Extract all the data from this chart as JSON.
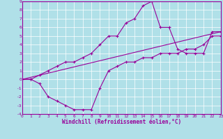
{
  "xlabel": "Windchill (Refroidissement éolien,°C)",
  "background_color": "#b0e0e8",
  "grid_color": "#ffffff",
  "line_color": "#990099",
  "xlim": [
    0,
    23
  ],
  "ylim": [
    -4,
    9
  ],
  "xticks": [
    0,
    1,
    2,
    3,
    4,
    5,
    6,
    7,
    8,
    9,
    10,
    11,
    12,
    13,
    14,
    15,
    16,
    17,
    18,
    19,
    20,
    21,
    22,
    23
  ],
  "yticks": [
    -4,
    -3,
    -2,
    -1,
    0,
    1,
    2,
    3,
    4,
    5,
    6,
    7,
    8,
    9
  ],
  "line1_x": [
    0,
    1,
    2,
    3,
    4,
    5,
    6,
    7,
    8,
    9,
    10,
    11,
    12,
    13,
    14,
    15,
    16,
    17,
    18,
    19,
    20,
    21,
    22,
    23
  ],
  "line1_y": [
    0,
    0,
    -0.5,
    -2,
    -2.5,
    -3,
    -3.5,
    -3.5,
    -3.5,
    -1.0,
    1.0,
    1.5,
    2.0,
    2.0,
    2.5,
    2.5,
    3.0,
    3.0,
    3.0,
    3.5,
    3.5,
    4.0,
    5.0,
    5.0
  ],
  "line2_x": [
    0,
    1,
    2,
    3,
    4,
    5,
    6,
    7,
    8,
    9,
    10,
    11,
    12,
    13,
    14,
    15,
    16,
    17,
    18,
    19,
    20,
    21,
    22,
    23
  ],
  "line2_y": [
    0,
    0,
    0.5,
    1.0,
    1.5,
    2.0,
    2.0,
    2.5,
    3.0,
    4.0,
    5.0,
    5.0,
    6.5,
    7.0,
    8.5,
    9.0,
    6.0,
    6.0,
    3.5,
    3.0,
    3.0,
    3.0,
    5.5,
    5.5
  ],
  "line3_x": [
    0,
    23
  ],
  "line3_y": [
    0.0,
    5.5
  ]
}
